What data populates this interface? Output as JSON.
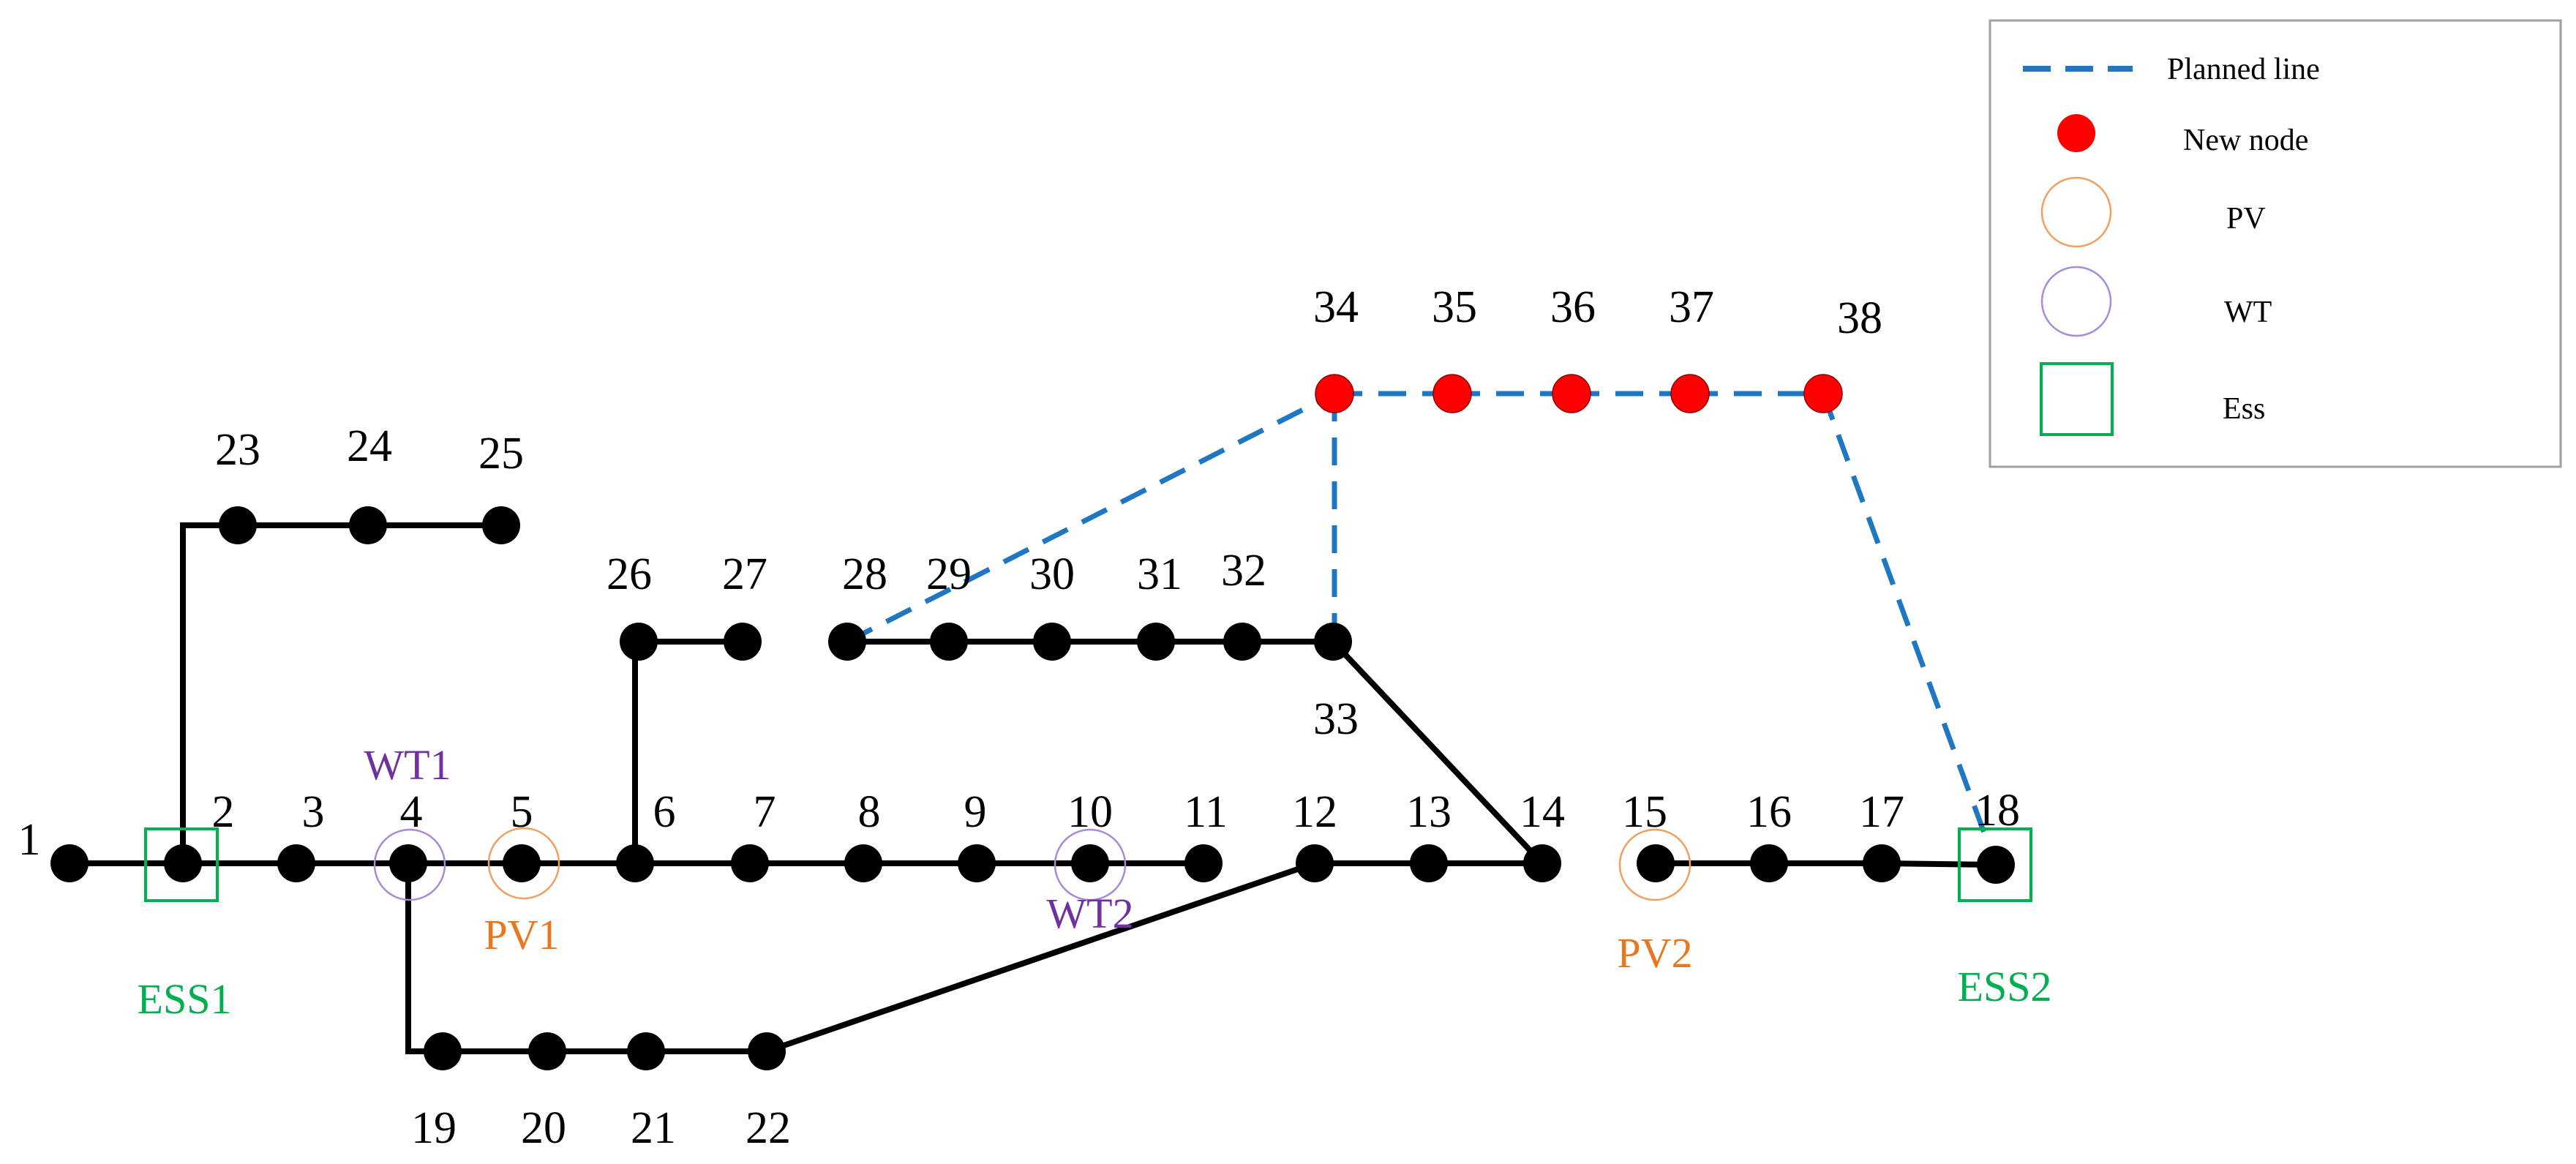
{
  "colors": {
    "existing_line": "#000000",
    "planned_line": "#1f77c4",
    "node": "#000000",
    "new_node": "#ff0000",
    "pv": "#f0a060",
    "pv_label": "#e87722",
    "wt": "#a78bd8",
    "wt_label": "#7030a0",
    "ess": "#00b050"
  },
  "legend": {
    "planned_line": "Planned line",
    "new_node": "New node",
    "pv": "PV",
    "wt": "WT",
    "ess": "Ess"
  },
  "nodes": [
    {
      "id": "1",
      "label": "1"
    },
    {
      "id": "2",
      "label": "2"
    },
    {
      "id": "3",
      "label": "3"
    },
    {
      "id": "4",
      "label": "4"
    },
    {
      "id": "5",
      "label": "5"
    },
    {
      "id": "6",
      "label": "6"
    },
    {
      "id": "7",
      "label": "7"
    },
    {
      "id": "8",
      "label": "8"
    },
    {
      "id": "9",
      "label": "9"
    },
    {
      "id": "10",
      "label": "10"
    },
    {
      "id": "11",
      "label": "11"
    },
    {
      "id": "12",
      "label": "12"
    },
    {
      "id": "13",
      "label": "13"
    },
    {
      "id": "14",
      "label": "14"
    },
    {
      "id": "15",
      "label": "15"
    },
    {
      "id": "16",
      "label": "16"
    },
    {
      "id": "17",
      "label": "17"
    },
    {
      "id": "18",
      "label": "18"
    },
    {
      "id": "19",
      "label": "19"
    },
    {
      "id": "20",
      "label": "20"
    },
    {
      "id": "21",
      "label": "21"
    },
    {
      "id": "22",
      "label": "22"
    },
    {
      "id": "23",
      "label": "23"
    },
    {
      "id": "24",
      "label": "24"
    },
    {
      "id": "25",
      "label": "25"
    },
    {
      "id": "26",
      "label": "26"
    },
    {
      "id": "27",
      "label": "27"
    },
    {
      "id": "28",
      "label": "28"
    },
    {
      "id": "29",
      "label": "29"
    },
    {
      "id": "30",
      "label": "30"
    },
    {
      "id": "31",
      "label": "31"
    },
    {
      "id": "32",
      "label": "32"
    },
    {
      "id": "33",
      "label": "33"
    },
    {
      "id": "34",
      "label": "34",
      "new": true
    },
    {
      "id": "35",
      "label": "35",
      "new": true
    },
    {
      "id": "36",
      "label": "36",
      "new": true
    },
    {
      "id": "37",
      "label": "37",
      "new": true
    },
    {
      "id": "38",
      "label": "38",
      "new": true
    }
  ],
  "existing_lines": [
    [
      "1",
      "2"
    ],
    [
      "2",
      "3"
    ],
    [
      "3",
      "4"
    ],
    [
      "4",
      "5"
    ],
    [
      "5",
      "6"
    ],
    [
      "6",
      "7"
    ],
    [
      "7",
      "8"
    ],
    [
      "8",
      "9"
    ],
    [
      "9",
      "10"
    ],
    [
      "10",
      "11"
    ],
    [
      "12",
      "13"
    ],
    [
      "13",
      "14"
    ],
    [
      "15",
      "16"
    ],
    [
      "16",
      "17"
    ],
    [
      "17",
      "18"
    ],
    [
      "2",
      "23"
    ],
    [
      "23",
      "24"
    ],
    [
      "24",
      "25"
    ],
    [
      "6",
      "26"
    ],
    [
      "26",
      "27"
    ],
    [
      "28",
      "29"
    ],
    [
      "29",
      "30"
    ],
    [
      "30",
      "31"
    ],
    [
      "31",
      "32"
    ],
    [
      "32",
      "33"
    ],
    [
      "33",
      "14"
    ],
    [
      "4",
      "19"
    ],
    [
      "19",
      "20"
    ],
    [
      "20",
      "21"
    ],
    [
      "21",
      "22"
    ],
    [
      "22",
      "12"
    ]
  ],
  "planned_lines": [
    [
      "28",
      "34"
    ],
    [
      "34",
      "35"
    ],
    [
      "35",
      "36"
    ],
    [
      "36",
      "37"
    ],
    [
      "37",
      "38"
    ],
    [
      "34",
      "33"
    ],
    [
      "38",
      "18"
    ]
  ],
  "devices": [
    {
      "type": "ess",
      "node": "2",
      "label": "ESS1"
    },
    {
      "type": "wt",
      "node": "4",
      "label": "WT1"
    },
    {
      "type": "pv",
      "node": "5",
      "label": "PV1"
    },
    {
      "type": "wt",
      "node": "10",
      "label": "WT2"
    },
    {
      "type": "pv",
      "node": "15",
      "label": "PV2"
    },
    {
      "type": "ess",
      "node": "18",
      "label": "ESS2"
    }
  ]
}
